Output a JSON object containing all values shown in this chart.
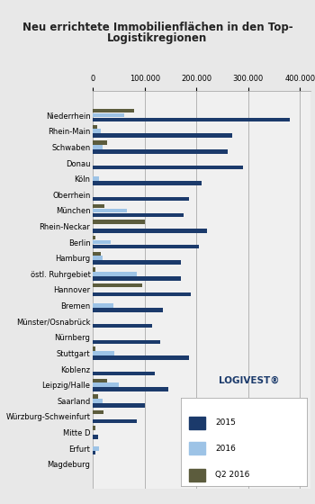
{
  "title_line1": "Neu errichtete Immobilienflächen in den Top-",
  "title_line2": "Logistikregionen",
  "categories": [
    "Niederrhein",
    "Rhein-Main",
    "Schwaben",
    "Donau",
    "Köln",
    "Oberrhein",
    "München",
    "Rhein-Neckar",
    "Berlin",
    "Hamburg",
    "östl. Ruhrgebiet",
    "Hannover",
    "Bremen",
    "Münster/Osnabrück",
    "Nürnberg",
    "Stuttgart",
    "Koblenz",
    "Leipzig/Halle",
    "Saarland",
    "Würzburg-Schweinfurt",
    "Mitte D",
    "Erfurt",
    "Magdeburg"
  ],
  "values_2015": [
    380000,
    270000,
    260000,
    290000,
    210000,
    185000,
    175000,
    220000,
    205000,
    170000,
    170000,
    190000,
    135000,
    115000,
    130000,
    185000,
    120000,
    145000,
    100000,
    85000,
    10000,
    5000,
    0
  ],
  "values_2016": [
    60000,
    15000,
    18000,
    0,
    12000,
    0,
    65000,
    0,
    35000,
    18000,
    85000,
    0,
    40000,
    0,
    0,
    42000,
    0,
    50000,
    18000,
    0,
    0,
    12000,
    0
  ],
  "values_q2_2016": [
    80000,
    8000,
    28000,
    0,
    0,
    0,
    22000,
    100000,
    5000,
    15000,
    5000,
    95000,
    0,
    0,
    0,
    5000,
    0,
    28000,
    10000,
    20000,
    5000,
    0,
    0
  ],
  "color_2015": "#1B3A6B",
  "color_2016": "#9DC3E6",
  "color_q2_2016": "#5C5C3D",
  "background_color": "#E8E8E8",
  "plot_bg_color": "#F0F0F0",
  "xlim": [
    0,
    420000
  ],
  "xticks": [
    0,
    100000,
    200000,
    300000,
    400000
  ],
  "xtick_labels": [
    "0",
    "100.000",
    "200.000",
    "300.000",
    "400.000"
  ],
  "logivest_color": "#1B3A6B",
  "logivest_text": "LOGIVEST®"
}
